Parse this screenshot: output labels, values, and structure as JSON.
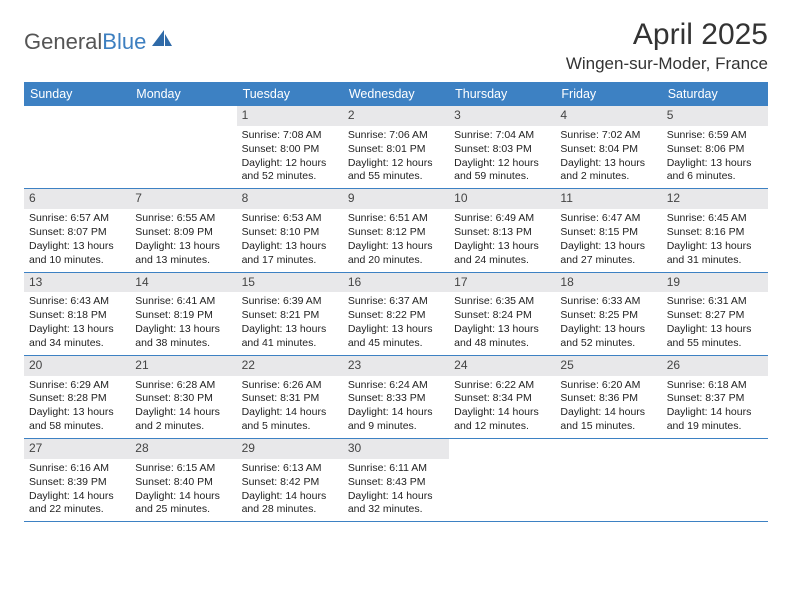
{
  "logo": {
    "text1": "General",
    "text2": "Blue"
  },
  "title": "April 2025",
  "location": "Wingen-sur-Moder, France",
  "dow": [
    "Sunday",
    "Monday",
    "Tuesday",
    "Wednesday",
    "Thursday",
    "Friday",
    "Saturday"
  ],
  "colors": {
    "header_bg": "#3d81c3",
    "header_fg": "#ffffff",
    "daynum_bg": "#e8e8ea",
    "rule": "#3d81c3",
    "logo_gray": "#555555",
    "logo_blue": "#3d7fc0",
    "text": "#222222"
  },
  "weeks": [
    [
      {
        "n": "",
        "empty": true
      },
      {
        "n": "",
        "empty": true
      },
      {
        "n": "1",
        "sr": "Sunrise: 7:08 AM",
        "ss": "Sunset: 8:00 PM",
        "dl": "Daylight: 12 hours and 52 minutes."
      },
      {
        "n": "2",
        "sr": "Sunrise: 7:06 AM",
        "ss": "Sunset: 8:01 PM",
        "dl": "Daylight: 12 hours and 55 minutes."
      },
      {
        "n": "3",
        "sr": "Sunrise: 7:04 AM",
        "ss": "Sunset: 8:03 PM",
        "dl": "Daylight: 12 hours and 59 minutes."
      },
      {
        "n": "4",
        "sr": "Sunrise: 7:02 AM",
        "ss": "Sunset: 8:04 PM",
        "dl": "Daylight: 13 hours and 2 minutes."
      },
      {
        "n": "5",
        "sr": "Sunrise: 6:59 AM",
        "ss": "Sunset: 8:06 PM",
        "dl": "Daylight: 13 hours and 6 minutes."
      }
    ],
    [
      {
        "n": "6",
        "sr": "Sunrise: 6:57 AM",
        "ss": "Sunset: 8:07 PM",
        "dl": "Daylight: 13 hours and 10 minutes."
      },
      {
        "n": "7",
        "sr": "Sunrise: 6:55 AM",
        "ss": "Sunset: 8:09 PM",
        "dl": "Daylight: 13 hours and 13 minutes."
      },
      {
        "n": "8",
        "sr": "Sunrise: 6:53 AM",
        "ss": "Sunset: 8:10 PM",
        "dl": "Daylight: 13 hours and 17 minutes."
      },
      {
        "n": "9",
        "sr": "Sunrise: 6:51 AM",
        "ss": "Sunset: 8:12 PM",
        "dl": "Daylight: 13 hours and 20 minutes."
      },
      {
        "n": "10",
        "sr": "Sunrise: 6:49 AM",
        "ss": "Sunset: 8:13 PM",
        "dl": "Daylight: 13 hours and 24 minutes."
      },
      {
        "n": "11",
        "sr": "Sunrise: 6:47 AM",
        "ss": "Sunset: 8:15 PM",
        "dl": "Daylight: 13 hours and 27 minutes."
      },
      {
        "n": "12",
        "sr": "Sunrise: 6:45 AM",
        "ss": "Sunset: 8:16 PM",
        "dl": "Daylight: 13 hours and 31 minutes."
      }
    ],
    [
      {
        "n": "13",
        "sr": "Sunrise: 6:43 AM",
        "ss": "Sunset: 8:18 PM",
        "dl": "Daylight: 13 hours and 34 minutes."
      },
      {
        "n": "14",
        "sr": "Sunrise: 6:41 AM",
        "ss": "Sunset: 8:19 PM",
        "dl": "Daylight: 13 hours and 38 minutes."
      },
      {
        "n": "15",
        "sr": "Sunrise: 6:39 AM",
        "ss": "Sunset: 8:21 PM",
        "dl": "Daylight: 13 hours and 41 minutes."
      },
      {
        "n": "16",
        "sr": "Sunrise: 6:37 AM",
        "ss": "Sunset: 8:22 PM",
        "dl": "Daylight: 13 hours and 45 minutes."
      },
      {
        "n": "17",
        "sr": "Sunrise: 6:35 AM",
        "ss": "Sunset: 8:24 PM",
        "dl": "Daylight: 13 hours and 48 minutes."
      },
      {
        "n": "18",
        "sr": "Sunrise: 6:33 AM",
        "ss": "Sunset: 8:25 PM",
        "dl": "Daylight: 13 hours and 52 minutes."
      },
      {
        "n": "19",
        "sr": "Sunrise: 6:31 AM",
        "ss": "Sunset: 8:27 PM",
        "dl": "Daylight: 13 hours and 55 minutes."
      }
    ],
    [
      {
        "n": "20",
        "sr": "Sunrise: 6:29 AM",
        "ss": "Sunset: 8:28 PM",
        "dl": "Daylight: 13 hours and 58 minutes."
      },
      {
        "n": "21",
        "sr": "Sunrise: 6:28 AM",
        "ss": "Sunset: 8:30 PM",
        "dl": "Daylight: 14 hours and 2 minutes."
      },
      {
        "n": "22",
        "sr": "Sunrise: 6:26 AM",
        "ss": "Sunset: 8:31 PM",
        "dl": "Daylight: 14 hours and 5 minutes."
      },
      {
        "n": "23",
        "sr": "Sunrise: 6:24 AM",
        "ss": "Sunset: 8:33 PM",
        "dl": "Daylight: 14 hours and 9 minutes."
      },
      {
        "n": "24",
        "sr": "Sunrise: 6:22 AM",
        "ss": "Sunset: 8:34 PM",
        "dl": "Daylight: 14 hours and 12 minutes."
      },
      {
        "n": "25",
        "sr": "Sunrise: 6:20 AM",
        "ss": "Sunset: 8:36 PM",
        "dl": "Daylight: 14 hours and 15 minutes."
      },
      {
        "n": "26",
        "sr": "Sunrise: 6:18 AM",
        "ss": "Sunset: 8:37 PM",
        "dl": "Daylight: 14 hours and 19 minutes."
      }
    ],
    [
      {
        "n": "27",
        "sr": "Sunrise: 6:16 AM",
        "ss": "Sunset: 8:39 PM",
        "dl": "Daylight: 14 hours and 22 minutes."
      },
      {
        "n": "28",
        "sr": "Sunrise: 6:15 AM",
        "ss": "Sunset: 8:40 PM",
        "dl": "Daylight: 14 hours and 25 minutes."
      },
      {
        "n": "29",
        "sr": "Sunrise: 6:13 AM",
        "ss": "Sunset: 8:42 PM",
        "dl": "Daylight: 14 hours and 28 minutes."
      },
      {
        "n": "30",
        "sr": "Sunrise: 6:11 AM",
        "ss": "Sunset: 8:43 PM",
        "dl": "Daylight: 14 hours and 32 minutes."
      },
      {
        "n": "",
        "empty": true
      },
      {
        "n": "",
        "empty": true
      },
      {
        "n": "",
        "empty": true
      }
    ]
  ]
}
